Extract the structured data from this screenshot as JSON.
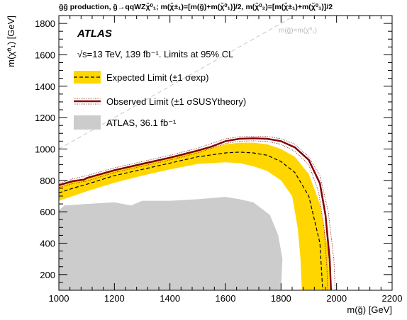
{
  "chart_data": {
    "type": "area",
    "title": "g̃g̃ production, g̃→qqWZχ̃⁰₁; m(χ̃±₁)=[m(g̃)+m(χ̃⁰₁)]/2, m(χ̃⁰₂)=[m(χ̃±₁)+m(χ̃⁰₁)]/2",
    "xlabel": "m(g̃) [GeV]",
    "ylabel": "m(χ̃⁰₁) [GeV]",
    "xlim": [
      1000,
      2200
    ],
    "ylim": [
      100,
      1850
    ],
    "xticks": [
      1000,
      1200,
      1400,
      1600,
      1800,
      2000,
      2200
    ],
    "yticks": [
      200,
      400,
      600,
      800,
      1000,
      1200,
      1400,
      1600,
      1800
    ],
    "atlas_label": "ATLAS",
    "energy_text": "√s=13 TeV, 139 fb⁻¹. Limits at 95% CL",
    "diagonal_label": "m(g̃)=m(χ̃⁰₁)",
    "legend": [
      {
        "label": "Expected Limit (±1 σexp)",
        "style": "yellow-band-dashed"
      },
      {
        "label": "Observed Limit (±1 σSUSYtheory)",
        "style": "darkred-solid-dotted"
      },
      {
        "label": "ATLAS, 36.1 fb⁻¹",
        "style": "grey-area"
      }
    ],
    "series": [
      {
        "name": "Expected Limit",
        "x": [
          1000,
          1050,
          1100,
          1200,
          1300,
          1400,
          1500,
          1600,
          1650,
          1700,
          1750,
          1800,
          1850,
          1900,
          1940,
          1950
        ],
        "y": [
          720,
          750,
          775,
          830,
          870,
          910,
          950,
          975,
          980,
          975,
          960,
          920,
          850,
          700,
          400,
          100
        ]
      },
      {
        "name": "Expected +1σ",
        "x": [
          1000,
          1050,
          1100,
          1200,
          1300,
          1400,
          1500,
          1600,
          1650,
          1700,
          1750,
          1800,
          1850,
          1900,
          1940,
          1970,
          1975
        ],
        "y": [
          760,
          790,
          810,
          860,
          900,
          950,
          985,
          1030,
          1040,
          1040,
          1030,
          1000,
          950,
          840,
          650,
          350,
          100
        ]
      },
      {
        "name": "Expected -1σ",
        "x": [
          1000,
          1050,
          1100,
          1200,
          1300,
          1400,
          1500,
          1600,
          1650,
          1700,
          1750,
          1800,
          1840,
          1860,
          1870,
          1875
        ],
        "y": [
          670,
          700,
          730,
          785,
          830,
          870,
          905,
          915,
          910,
          890,
          860,
          800,
          700,
          500,
          300,
          100
        ]
      },
      {
        "name": "Observed Limit",
        "x": [
          1000,
          1050,
          1090,
          1100,
          1200,
          1300,
          1400,
          1500,
          1550,
          1600,
          1650,
          1700,
          1750,
          1800,
          1850,
          1900,
          1940,
          1960,
          1975,
          1980
        ],
        "y": [
          770,
          795,
          805,
          815,
          865,
          905,
          945,
          990,
          1015,
          1050,
          1065,
          1068,
          1065,
          1050,
          1010,
          930,
          780,
          580,
          300,
          100
        ]
      },
      {
        "name": "Observed +1σ theory",
        "x": [
          1000,
          1050,
          1100,
          1200,
          1300,
          1400,
          1500,
          1600,
          1650,
          1700,
          1750,
          1800,
          1850,
          1900,
          1940,
          1970,
          1990,
          1995
        ],
        "y": [
          780,
          810,
          830,
          880,
          920,
          960,
          1005,
          1065,
          1078,
          1082,
          1080,
          1065,
          1030,
          950,
          830,
          600,
          300,
          100
        ]
      },
      {
        "name": "Observed -1σ theory",
        "x": [
          1000,
          1050,
          1100,
          1200,
          1300,
          1400,
          1500,
          1600,
          1650,
          1700,
          1750,
          1800,
          1850,
          1900,
          1935,
          1955,
          1965,
          1968
        ],
        "y": [
          755,
          780,
          795,
          850,
          890,
          930,
          975,
          1035,
          1050,
          1052,
          1048,
          1030,
          985,
          900,
          730,
          500,
          250,
          100
        ]
      },
      {
        "name": "ATLAS, 36.1 fb⁻¹",
        "x": [
          1000,
          1020,
          1100,
          1200,
          1260,
          1300,
          1400,
          1500,
          1600,
          1650,
          1700,
          1760,
          1790,
          1805,
          1800,
          1000
        ],
        "y": [
          610,
          640,
          650,
          660,
          640,
          670,
          670,
          680,
          695,
          680,
          660,
          580,
          450,
          300,
          100,
          100
        ]
      }
    ],
    "diagonal": {
      "x": [
        1000,
        1850
      ],
      "y": [
        1000,
        1850
      ]
    },
    "grid": false,
    "legend_position": "top-left",
    "colors": {
      "expected_band": "#ffd600",
      "observed": "#800000",
      "previous": "#cccccc",
      "diagonal": "#c8c8c8"
    }
  }
}
